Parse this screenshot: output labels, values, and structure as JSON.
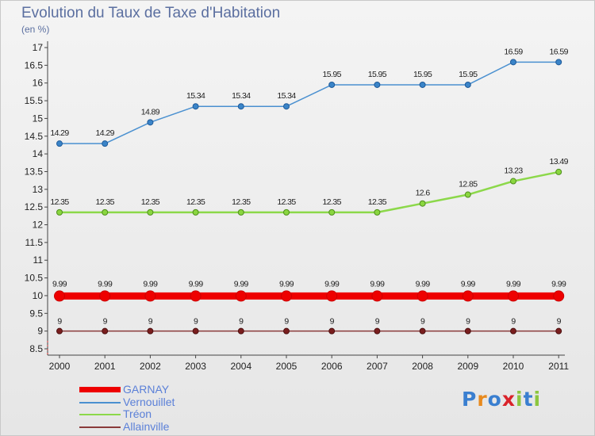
{
  "title": "Evolution du Taux de Taxe d'Habitation",
  "unit_label": "(en %)",
  "logo_text": "Proxiti",
  "chart_data": {
    "type": "line",
    "title": "Evolution du Taux de Taxe d'Habitation",
    "ylabel": "(en %)",
    "xlabel": "",
    "categories": [
      "2000",
      "2001",
      "2002",
      "2003",
      "2004",
      "2005",
      "2006",
      "2007",
      "2008",
      "2009",
      "2010",
      "2011"
    ],
    "ylim": [
      8.5,
      17
    ],
    "yticks": [
      8.5,
      9,
      9.5,
      10,
      10.5,
      11,
      11.5,
      12,
      12.5,
      13,
      13.5,
      14,
      14.5,
      15,
      15.5,
      16,
      16.5,
      17
    ],
    "grid": false,
    "legend_position": "bottom-left",
    "series": [
      {
        "name": "GARNAY",
        "color": "#ee0000",
        "values": [
          9.99,
          9.99,
          9.99,
          9.99,
          9.99,
          9.99,
          9.99,
          9.99,
          9.99,
          9.99,
          9.99,
          9.99
        ],
        "labels": [
          "9.99",
          "9.99",
          "9.99",
          "9.99",
          "9.99",
          "9.99",
          "9.99",
          "9.99",
          "9.99",
          "9.99",
          "9.99",
          "9.99"
        ]
      },
      {
        "name": "Vernouillet",
        "color": "#4a90d0",
        "values": [
          14.29,
          14.29,
          14.89,
          15.34,
          15.34,
          15.34,
          15.95,
          15.95,
          15.95,
          15.95,
          16.59,
          16.59
        ],
        "labels": [
          "14.29",
          "14.29",
          "14.89",
          "15.34",
          "15.34",
          "15.34",
          "15.95",
          "15.95",
          "15.95",
          "15.95",
          "16.59",
          "16.59"
        ]
      },
      {
        "name": "Tréon",
        "color": "#8cd84a",
        "values": [
          12.35,
          12.35,
          12.35,
          12.35,
          12.35,
          12.35,
          12.35,
          12.35,
          12.6,
          12.85,
          13.23,
          13.49
        ],
        "labels": [
          "12.35",
          "12.35",
          "12.35",
          "12.35",
          "12.35",
          "12.35",
          "12.35",
          "12.35",
          "12.6",
          "12.85",
          "13.23",
          "13.49"
        ]
      },
      {
        "name": "Allainville",
        "color": "#8a3a3a",
        "values": [
          9,
          9,
          9,
          9,
          9,
          9,
          9,
          9,
          9,
          9,
          9,
          9
        ],
        "labels": [
          "9",
          "9",
          "9",
          "9",
          "9",
          "9",
          "9",
          "9",
          "9",
          "9",
          "9",
          "9"
        ]
      }
    ]
  }
}
